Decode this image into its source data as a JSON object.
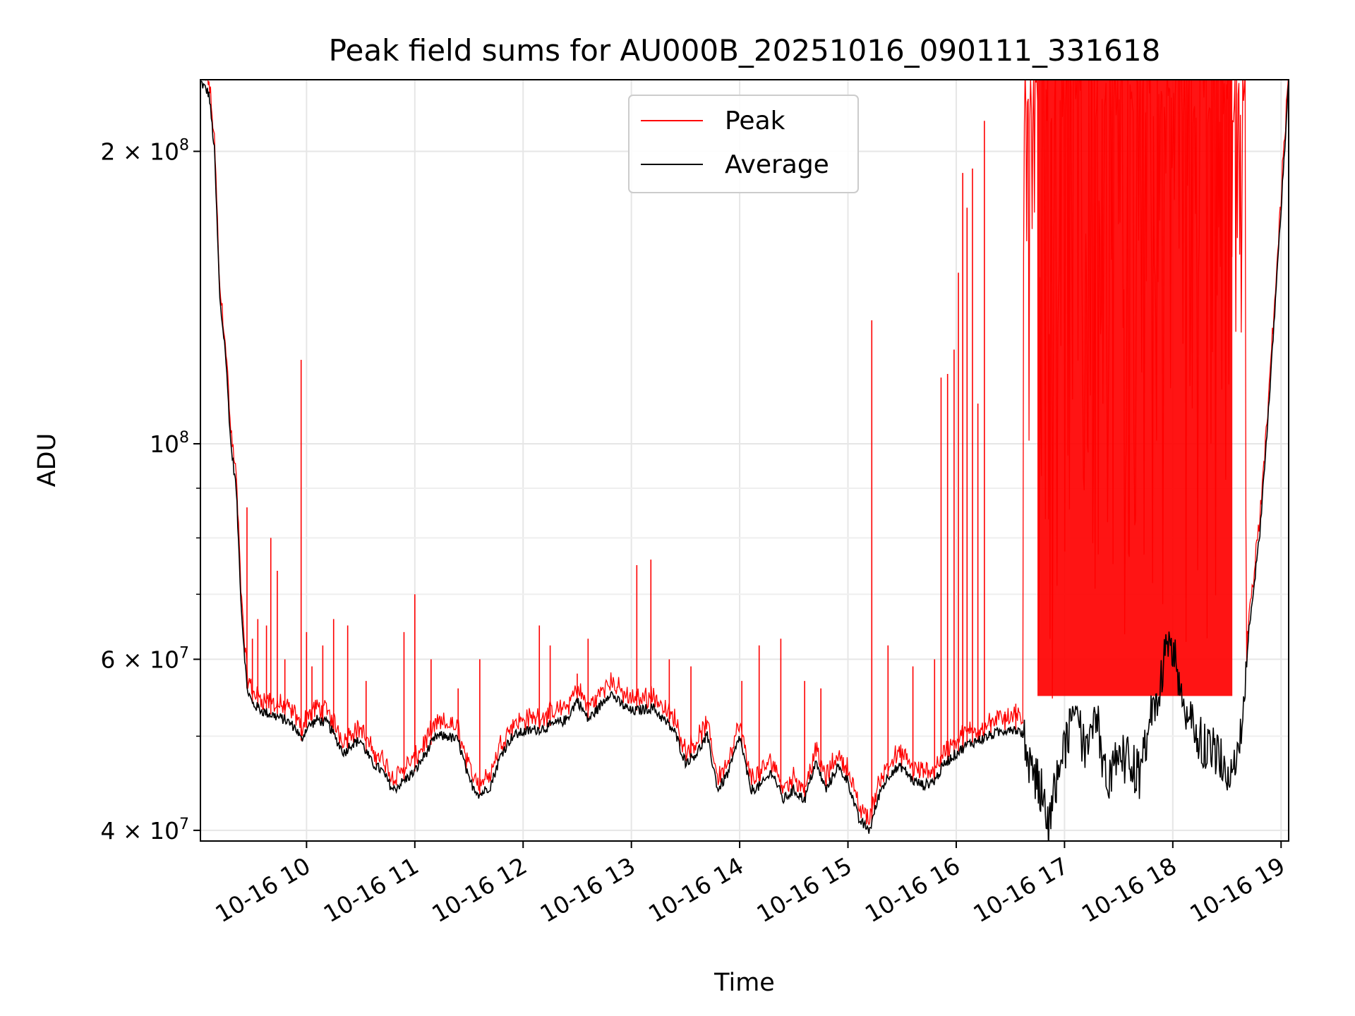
{
  "chart_data": {
    "type": "line",
    "title": "Peak field sums for AU000B_20251016_090111_331618",
    "xlabel": "Time",
    "ylabel": "ADU",
    "yscale": "log",
    "ylim": [
      39000000,
      237000000
    ],
    "xlim_hours": [
      9.02,
      19.07
    ],
    "grid": true,
    "legend_position": "top-center",
    "x_ticks": [
      {
        "value": 10,
        "label": "10-16 10"
      },
      {
        "value": 11,
        "label": "10-16 11"
      },
      {
        "value": 12,
        "label": "10-16 12"
      },
      {
        "value": 13,
        "label": "10-16 13"
      },
      {
        "value": 14,
        "label": "10-16 14"
      },
      {
        "value": 15,
        "label": "10-16 15"
      },
      {
        "value": 16,
        "label": "10-16 16"
      },
      {
        "value": 17,
        "label": "10-16 17"
      },
      {
        "value": 18,
        "label": "10-16 18"
      },
      {
        "value": 19,
        "label": "10-16 19"
      }
    ],
    "y_major_ticks": [
      {
        "value": 40000000,
        "base": "4 × 10",
        "exp": "7"
      },
      {
        "value": 60000000,
        "base": "6 × 10",
        "exp": "7"
      },
      {
        "value": 100000000,
        "base": "10",
        "exp": "8"
      },
      {
        "value": 200000000,
        "base": "2 × 10",
        "exp": "8"
      }
    ],
    "y_minor_ticks": [
      50000000,
      70000000,
      80000000,
      90000000
    ],
    "series": [
      {
        "name": "Average",
        "color": "#000000",
        "x": [
          9.02,
          9.1,
          9.15,
          9.2,
          9.25,
          9.3,
          9.35,
          9.4,
          9.45,
          9.5,
          9.55,
          9.6,
          9.7,
          9.8,
          9.9,
          9.95,
          10.0,
          10.1,
          10.2,
          10.3,
          10.35,
          10.4,
          10.5,
          10.6,
          10.7,
          10.8,
          10.9,
          11.0,
          11.1,
          11.2,
          11.3,
          11.4,
          11.5,
          11.6,
          11.7,
          11.8,
          11.9,
          12.0,
          12.2,
          12.4,
          12.5,
          12.6,
          12.7,
          12.8,
          12.9,
          13.0,
          13.2,
          13.4,
          13.5,
          13.6,
          13.7,
          13.8,
          13.9,
          14.0,
          14.1,
          14.2,
          14.3,
          14.4,
          14.5,
          14.6,
          14.7,
          14.8,
          14.9,
          15.0,
          15.1,
          15.2,
          15.3,
          15.4,
          15.5,
          15.6,
          15.7,
          15.8,
          15.9,
          16.0,
          16.1,
          16.2,
          16.3,
          16.4,
          16.5,
          16.6,
          16.7,
          16.8,
          16.85,
          16.9,
          17.0,
          17.1,
          17.2,
          17.3,
          17.4,
          17.5,
          17.6,
          17.7,
          17.8,
          17.9,
          17.95,
          18.0,
          18.05,
          18.1,
          18.2,
          18.3,
          18.4,
          18.5,
          18.6,
          18.65,
          18.7,
          18.8,
          18.9,
          19.0,
          19.07
        ],
        "y": [
          236000000,
          229000000,
          200000000,
          140000000,
          125000000,
          100000000,
          90000000,
          67000000,
          56000000,
          54000000,
          53500000,
          53000000,
          52500000,
          52000000,
          51000000,
          49500000,
          51000000,
          52000000,
          51500000,
          49000000,
          48000000,
          49000000,
          49500000,
          47000000,
          46000000,
          44000000,
          45000000,
          46000000,
          48000000,
          50000000,
          50000000,
          49500000,
          45000000,
          43500000,
          44500000,
          48000000,
          50000000,
          50500000,
          51000000,
          52000000,
          54500000,
          52000000,
          53500000,
          55500000,
          54000000,
          53000000,
          53500000,
          50500000,
          47000000,
          48000000,
          50000000,
          44000000,
          46000000,
          50000000,
          44000000,
          44500000,
          46000000,
          43000000,
          44000000,
          43000000,
          47000000,
          44000000,
          46500000,
          45000000,
          41000000,
          40000000,
          44000000,
          46000000,
          46500000,
          45000000,
          44500000,
          45000000,
          47000000,
          48000000,
          49000000,
          49500000,
          50000000,
          50500000,
          51000000,
          50500000,
          46000000,
          44000000,
          40000000,
          44000000,
          48000000,
          54000000,
          47000000,
          52000000,
          44000000,
          48000000,
          47000000,
          45500000,
          52000000,
          57000000,
          64000000,
          62000000,
          58000000,
          52000000,
          51000000,
          49000000,
          48000000,
          46000000,
          48000000,
          51000000,
          64000000,
          80000000,
          115000000,
          175000000,
          236000000
        ]
      },
      {
        "name": "Peak",
        "color": "#ff0000",
        "spikes": [
          {
            "x": 9.45,
            "y": 86000000
          },
          {
            "x": 9.5,
            "y": 63000000
          },
          {
            "x": 9.55,
            "y": 66000000
          },
          {
            "x": 9.63,
            "y": 65000000
          },
          {
            "x": 9.67,
            "y": 80000000
          },
          {
            "x": 9.73,
            "y": 74000000
          },
          {
            "x": 9.8,
            "y": 60000000
          },
          {
            "x": 9.95,
            "y": 122000000
          },
          {
            "x": 10.0,
            "y": 64000000
          },
          {
            "x": 10.05,
            "y": 59000000
          },
          {
            "x": 10.15,
            "y": 62000000
          },
          {
            "x": 10.25,
            "y": 66000000
          },
          {
            "x": 10.38,
            "y": 65000000
          },
          {
            "x": 10.55,
            "y": 57000000
          },
          {
            "x": 10.9,
            "y": 64000000
          },
          {
            "x": 11.0,
            "y": 70000000
          },
          {
            "x": 11.15,
            "y": 60000000
          },
          {
            "x": 11.4,
            "y": 56000000
          },
          {
            "x": 11.6,
            "y": 60000000
          },
          {
            "x": 12.15,
            "y": 65000000
          },
          {
            "x": 12.25,
            "y": 62000000
          },
          {
            "x": 12.5,
            "y": 58000000
          },
          {
            "x": 12.6,
            "y": 63000000
          },
          {
            "x": 13.05,
            "y": 75000000
          },
          {
            "x": 13.18,
            "y": 76000000
          },
          {
            "x": 13.35,
            "y": 60000000
          },
          {
            "x": 13.55,
            "y": 59000000
          },
          {
            "x": 14.02,
            "y": 57000000
          },
          {
            "x": 14.18,
            "y": 62000000
          },
          {
            "x": 14.38,
            "y": 63000000
          },
          {
            "x": 14.6,
            "y": 57000000
          },
          {
            "x": 14.75,
            "y": 56000000
          },
          {
            "x": 15.22,
            "y": 134000000
          },
          {
            "x": 15.37,
            "y": 62000000
          },
          {
            "x": 15.6,
            "y": 59000000
          },
          {
            "x": 15.8,
            "y": 60000000
          },
          {
            "x": 15.86,
            "y": 117000000
          },
          {
            "x": 15.92,
            "y": 118000000
          },
          {
            "x": 15.98,
            "y": 125000000
          },
          {
            "x": 16.02,
            "y": 150000000
          },
          {
            "x": 16.06,
            "y": 190000000
          },
          {
            "x": 16.1,
            "y": 175000000
          },
          {
            "x": 16.15,
            "y": 192000000
          },
          {
            "x": 16.2,
            "y": 110000000
          },
          {
            "x": 16.26,
            "y": 215000000
          },
          {
            "x": 16.32,
            "y": 52000000
          },
          {
            "x": 16.45,
            "y": 53000000
          },
          {
            "x": 16.55,
            "y": 54000000
          }
        ],
        "saturated_band": {
          "x_start": 16.62,
          "x_end": 18.68,
          "y_max": 237000000
        }
      }
    ]
  }
}
